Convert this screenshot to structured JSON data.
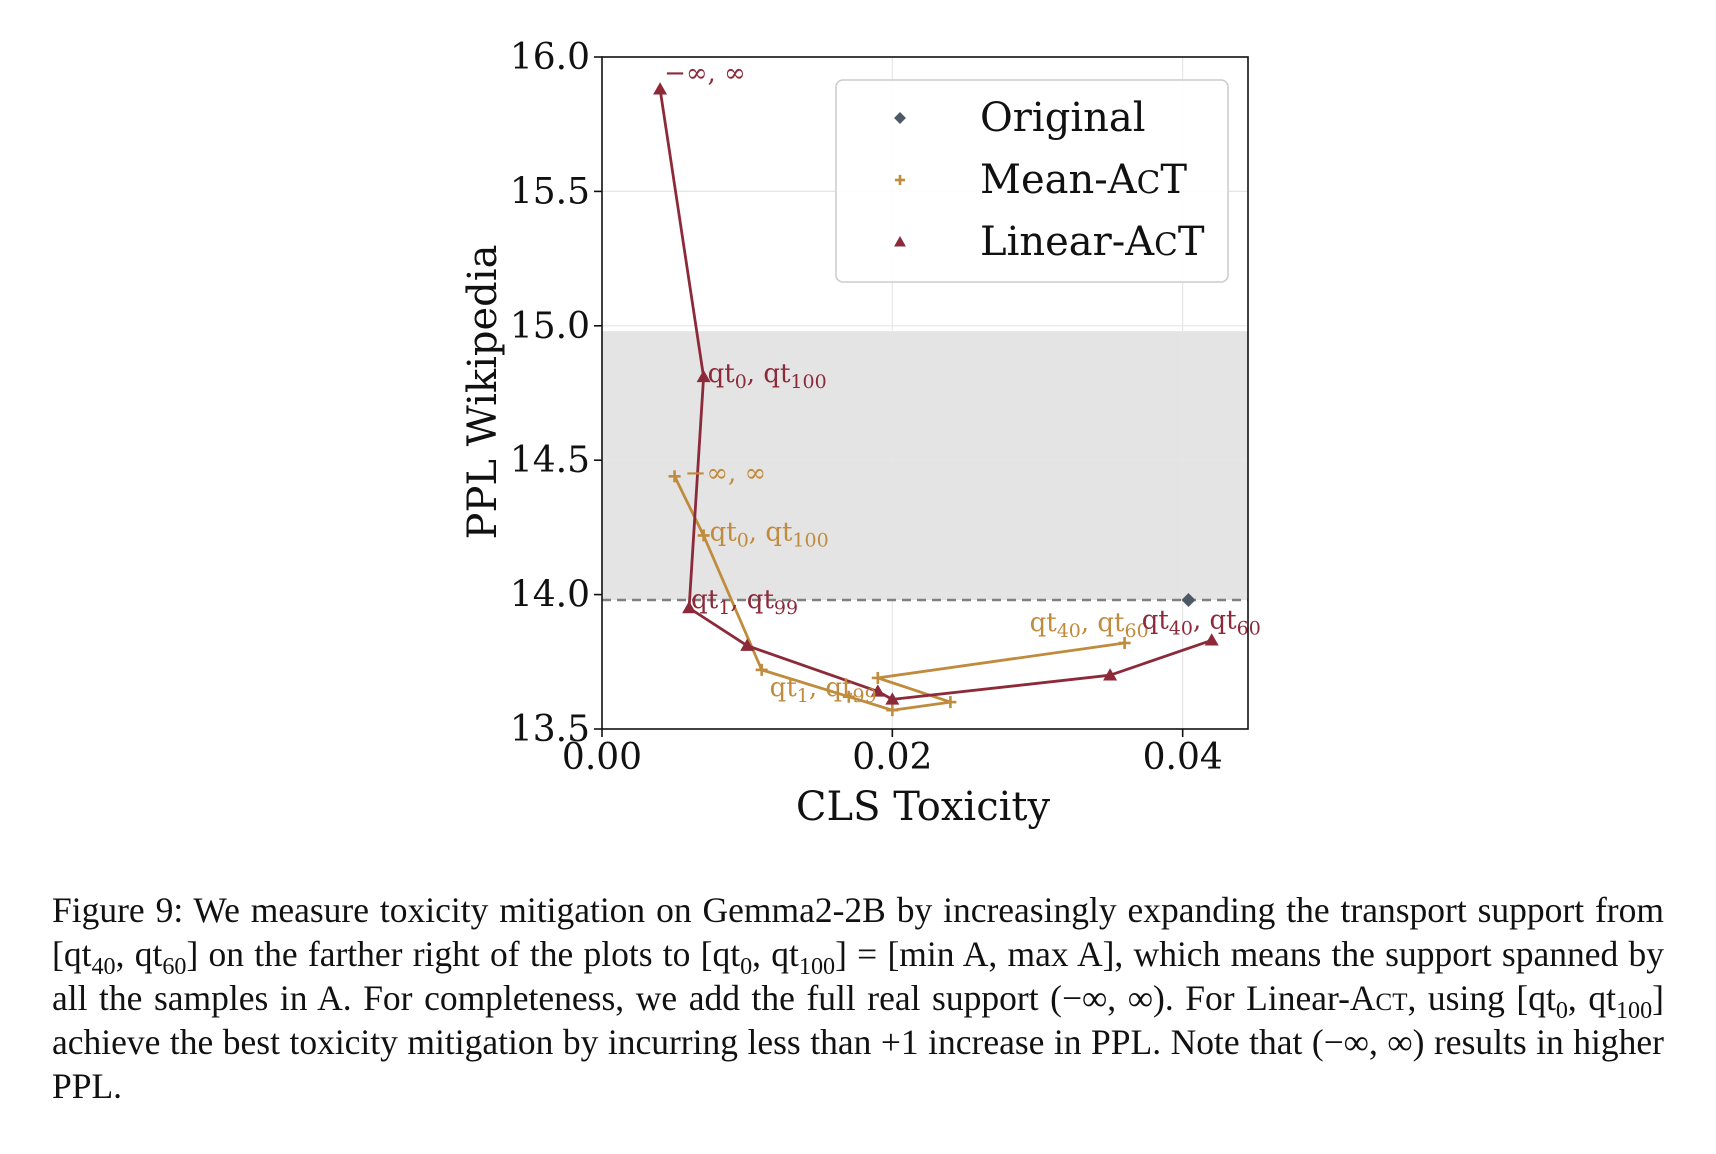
{
  "chart_data": {
    "type": "line",
    "xlabel": "CLS Toxicity",
    "ylabel": "PPL Wikipedia",
    "xlim": [
      0.0,
      0.0445
    ],
    "ylim": [
      13.5,
      16.0
    ],
    "xticks": [
      "0.00",
      "0.02",
      "0.04"
    ],
    "xtick_values": [
      0.0,
      0.02,
      0.04
    ],
    "yticks": [
      "13.5",
      "14.0",
      "14.5",
      "15.0",
      "15.5",
      "16.0"
    ],
    "ytick_values": [
      13.5,
      14.0,
      14.5,
      15.0,
      15.5,
      16.0
    ],
    "grid": true,
    "legend_position": "top-right",
    "shaded_band": {
      "y_from": 13.98,
      "y_to": 14.98
    },
    "reference_line": {
      "y": 13.98
    },
    "series": [
      {
        "name": "Original",
        "marker": "diamond",
        "color": "#4d5a66",
        "points": [
          {
            "x": 0.0404,
            "y": 13.98
          }
        ]
      },
      {
        "name": "Mean-AcT",
        "marker": "plus",
        "color": "#c08b3c",
        "points": [
          {
            "x": 0.036,
            "y": 13.82
          },
          {
            "x": 0.019,
            "y": 13.69
          },
          {
            "x": 0.024,
            "y": 13.6
          },
          {
            "x": 0.02,
            "y": 13.57
          },
          {
            "x": 0.017,
            "y": 13.62
          },
          {
            "x": 0.011,
            "y": 13.72
          },
          {
            "x": 0.007,
            "y": 14.22
          },
          {
            "x": 0.005,
            "y": 14.44
          }
        ],
        "annotations": [
          {
            "text": "qt40, qt60",
            "point_index": 0
          },
          {
            "text": "qt1, qt99",
            "point_index": 5
          },
          {
            "text": "qt0, qt100",
            "point_index": 6
          },
          {
            "text": "−∞, ∞",
            "point_index": 7
          }
        ]
      },
      {
        "name": "Linear-AcT",
        "marker": "triangle",
        "color": "#8c2a3a",
        "points": [
          {
            "x": 0.042,
            "y": 13.83
          },
          {
            "x": 0.035,
            "y": 13.7
          },
          {
            "x": 0.02,
            "y": 13.61
          },
          {
            "x": 0.019,
            "y": 13.64
          },
          {
            "x": 0.01,
            "y": 13.81
          },
          {
            "x": 0.006,
            "y": 13.95
          },
          {
            "x": 0.007,
            "y": 14.81
          },
          {
            "x": 0.004,
            "y": 15.88
          }
        ],
        "annotations": [
          {
            "text": "qt40, qt60",
            "point_index": 0
          },
          {
            "text": "qt1, qt99",
            "point_index": 5
          },
          {
            "text": "qt0, qt100",
            "point_index": 6
          },
          {
            "text": "−∞, ∞",
            "point_index": 7
          }
        ]
      }
    ]
  },
  "caption": {
    "label": "Figure 9:",
    "text_1": " We measure toxicity mitigation on Gemma2-2B by increasingly expanding the transport support from [qt",
    "sub_40": "40",
    "text_2": ", qt",
    "sub_60": "60",
    "text_3": "] on the farther right of the plots to [qt",
    "sub_0": "0",
    "text_4": ", qt",
    "sub_100": "100",
    "text_5": "] = [min A, max A], which means the support spanned by all the samples in A. For completeness, we add the full real support (−∞, ∞). For Linear-A",
    "sc_1": "ct",
    "text_6": ", using [qt",
    "sub_0b": "0",
    "text_7": ", qt",
    "sub_100b": "100",
    "text_8": "] achieve the best toxicity mitigation by incurring less than +1 increase in PPL. Note that (−∞, ∞) results in higher PPL."
  }
}
